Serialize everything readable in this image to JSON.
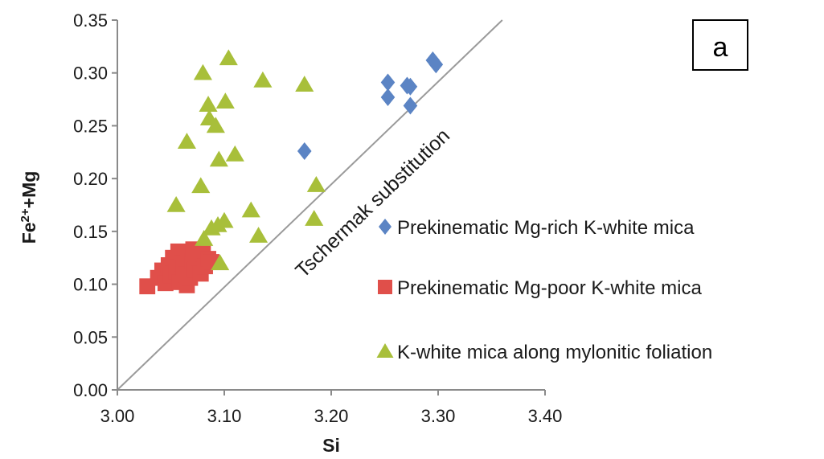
{
  "chart_data": {
    "type": "scatter",
    "title": "",
    "xlabel": "Si",
    "ylabel_main": "Fe",
    "ylabel_sup": "2+",
    "ylabel_rest": "+Mg",
    "xlim": [
      3.0,
      3.4
    ],
    "ylim": [
      0.0,
      0.35
    ],
    "x_ticks": [
      "3.00",
      "3.10",
      "3.20",
      "3.30",
      "3.40"
    ],
    "y_ticks": [
      "0.00",
      "0.05",
      "0.10",
      "0.15",
      "0.20",
      "0.25",
      "0.30",
      "0.35"
    ],
    "grid": false,
    "legend_position": "right",
    "panel_label": "a",
    "reference_line": {
      "label": "Tschermak substitution",
      "from": [
        3.0,
        0.0
      ],
      "to": [
        3.36,
        0.35
      ]
    },
    "series": [
      {
        "name": "Prekinematic Mg-rich K-white mica",
        "marker": "diamond",
        "color": "#5b84c4",
        "points": [
          [
            3.175,
            0.226
          ],
          [
            3.253,
            0.291
          ],
          [
            3.253,
            0.277
          ],
          [
            3.271,
            0.288
          ],
          [
            3.274,
            0.287
          ],
          [
            3.274,
            0.269
          ],
          [
            3.295,
            0.312
          ],
          [
            3.298,
            0.308
          ]
        ]
      },
      {
        "name": "Prekinematic Mg-poor K-white mica",
        "marker": "square",
        "color": "#e04f4a",
        "points": [
          [
            3.028,
            0.098
          ],
          [
            3.038,
            0.106
          ],
          [
            3.042,
            0.113
          ],
          [
            3.045,
            0.101
          ],
          [
            3.048,
            0.118
          ],
          [
            3.05,
            0.108
          ],
          [
            3.052,
            0.125
          ],
          [
            3.055,
            0.112
          ],
          [
            3.057,
            0.131
          ],
          [
            3.058,
            0.102
          ],
          [
            3.06,
            0.12
          ],
          [
            3.062,
            0.115
          ],
          [
            3.064,
            0.109
          ],
          [
            3.065,
            0.099
          ],
          [
            3.066,
            0.127
          ],
          [
            3.068,
            0.106
          ],
          [
            3.07,
            0.122
          ],
          [
            3.071,
            0.133
          ],
          [
            3.072,
            0.114
          ],
          [
            3.074,
            0.118
          ],
          [
            3.076,
            0.125
          ],
          [
            3.078,
            0.11
          ],
          [
            3.08,
            0.129
          ],
          [
            3.082,
            0.117
          ],
          [
            3.085,
            0.124
          ],
          [
            3.088,
            0.121
          ]
        ]
      },
      {
        "name": "K-white mica along mylonitic foliation",
        "marker": "triangle",
        "color": "#a8bf3a",
        "points": [
          [
            3.055,
            0.175
          ],
          [
            3.065,
            0.235
          ],
          [
            3.078,
            0.193
          ],
          [
            3.08,
            0.3
          ],
          [
            3.081,
            0.143
          ],
          [
            3.085,
            0.27
          ],
          [
            3.086,
            0.257
          ],
          [
            3.088,
            0.153
          ],
          [
            3.092,
            0.25
          ],
          [
            3.094,
            0.156
          ],
          [
            3.095,
            0.218
          ],
          [
            3.096,
            0.12
          ],
          [
            3.1,
            0.16
          ],
          [
            3.101,
            0.273
          ],
          [
            3.104,
            0.314
          ],
          [
            3.11,
            0.223
          ],
          [
            3.125,
            0.17
          ],
          [
            3.132,
            0.146
          ],
          [
            3.136,
            0.293
          ],
          [
            3.175,
            0.289
          ],
          [
            3.184,
            0.162
          ],
          [
            3.186,
            0.194
          ]
        ]
      }
    ]
  }
}
